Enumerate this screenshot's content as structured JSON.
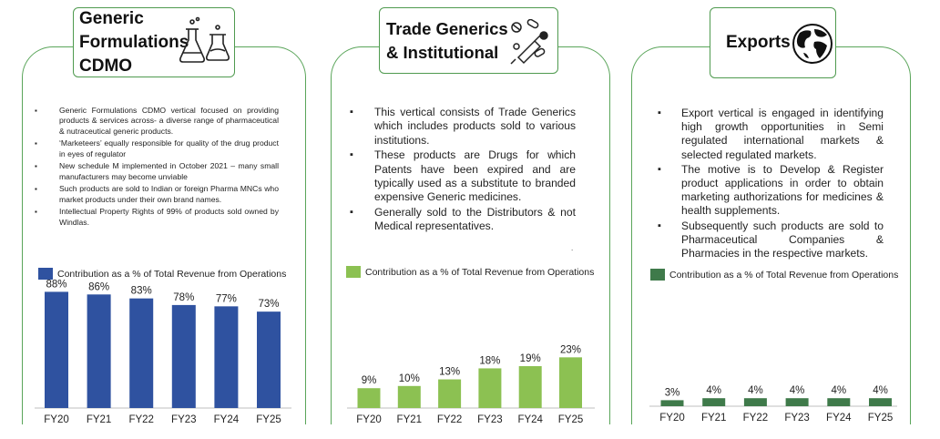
{
  "panels": [
    {
      "title_lines": [
        "Generic",
        "Formulations",
        "CDMO"
      ],
      "icon": "lab-flask-icon",
      "bullets": [
        "Generic Formulations CDMO vertical focused on providing products & services across- a diverse range of pharmaceutical & nutraceutical generic products.",
        "‘Marketeers’ equally responsible for quality of the drug product in eyes of regulator",
        "New schedule M implemented in October 2021 – many small manufacturers may become unviable",
        "Such products are sold to Indian or foreign Pharma MNCs  who market products under their own brand names.",
        "Intellectual Property Rights of 99% of products sold owned by Windlas."
      ],
      "legend": "Contribution as a % of Total Revenue from Operations",
      "color": "#2f52a0"
    },
    {
      "title_lines": [
        "Trade Generics",
        "& Institutional"
      ],
      "icon": "pills-syringe-icon",
      "bullets": [
        "This vertical consists of Trade Generics which includes products sold to various institutions.",
        "These products are Drugs for which Patents have been expired and are typically used as a substitute to branded expensive Generic medicines.",
        "Generally sold to the Distributors & not Medical representatives."
      ],
      "footnote": ".",
      "legend": "Contribution as a % of Total Revenue from Operations",
      "color": "#8cc152"
    },
    {
      "title_lines": [
        "Exports"
      ],
      "icon": "globe-icon",
      "bullets": [
        "Export vertical is engaged in identifying high growth opportunities in Semi regulated international markets & selected regulated markets.",
        "The motive is to Develop & Register product applications in order to obtain marketing authorizations for medicines & health supplements.",
        "Subsequently such products are sold to Pharmaceutical Companies & Pharmacies in the respective markets."
      ],
      "legend": "Contribution as a % of Total Revenue from Operations",
      "color": "#3f7a4a"
    }
  ],
  "chart_data": [
    {
      "type": "bar",
      "title": "Generic Formulations CDMO",
      "legend": "Contribution as a % of Total Revenue from Operations",
      "categories": [
        "FY20",
        "FY21",
        "FY22",
        "FY23",
        "FY24",
        "FY25"
      ],
      "values": [
        88,
        86,
        83,
        78,
        77,
        73
      ],
      "labels": [
        "88%",
        "86%",
        "83%",
        "78%",
        "77%",
        "73%"
      ],
      "ylim": [
        0,
        100
      ],
      "color": "#2f52a0"
    },
    {
      "type": "bar",
      "title": "Trade Generics & Institutional",
      "legend": "Contribution as a % of Total Revenue from Operations",
      "categories": [
        "FY20",
        "FY21",
        "FY22",
        "FY23",
        "FY24",
        "FY25"
      ],
      "values": [
        9,
        10,
        13,
        18,
        19,
        23
      ],
      "labels": [
        "9%",
        "10%",
        "13%",
        "18%",
        "19%",
        "23%"
      ],
      "ylim": [
        0,
        25
      ],
      "color": "#8cc152"
    },
    {
      "type": "bar",
      "title": "Exports",
      "legend": "Contribution as a % of Total Revenue from Operations",
      "categories": [
        "FY20",
        "FY21",
        "FY22",
        "FY23",
        "FY24",
        "FY25"
      ],
      "values": [
        3,
        4,
        4,
        4,
        4,
        4
      ],
      "labels": [
        "3%",
        "4%",
        "4%",
        "4%",
        "4%",
        "4%"
      ],
      "ylim": [
        0,
        8
      ],
      "color": "#3f7a4a"
    }
  ]
}
